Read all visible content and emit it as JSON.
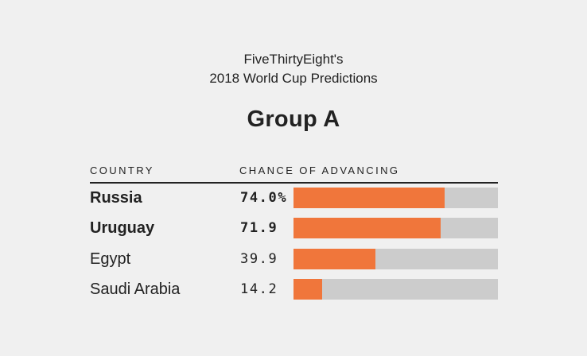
{
  "header": {
    "line1": "FiveThirtyEight's",
    "line2": "2018 World Cup Predictions"
  },
  "group_title": "Group A",
  "columns": {
    "country": "COUNTRY",
    "chance": "CHANCE OF ADVANCING"
  },
  "colors": {
    "bar_fill": "#f0763b",
    "bar_track": "#cccccc",
    "background": "#f0f0f0"
  },
  "chart_data": {
    "type": "bar",
    "orientation": "horizontal",
    "title": "Group A",
    "subtitle": "FiveThirtyEight's 2018 World Cup Predictions",
    "xlabel": "CHANCE OF ADVANCING",
    "ylabel": "COUNTRY",
    "xlim": [
      0,
      100
    ],
    "unit": "%",
    "grid": false,
    "categories": [
      "Russia",
      "Uruguay",
      "Egypt",
      "Saudi Arabia"
    ],
    "values": [
      74.0,
      71.9,
      39.9,
      14.2
    ],
    "value_labels": [
      "74.0%",
      "71.9",
      "39.9",
      "14.2"
    ],
    "bold": [
      true,
      true,
      false,
      false
    ]
  }
}
